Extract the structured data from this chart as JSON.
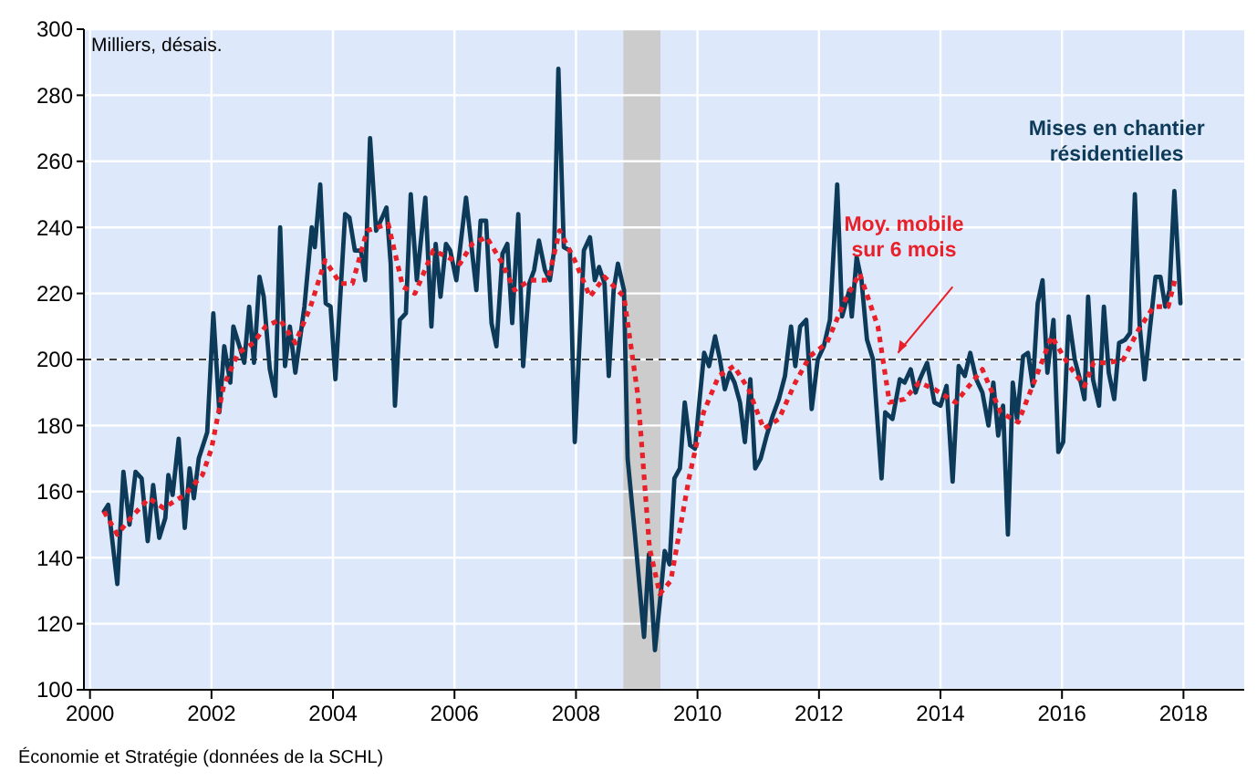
{
  "chart_data": {
    "type": "line",
    "ylabel": "Milliers, désais.",
    "xlim": [
      1999.9,
      2019
    ],
    "xticks": [
      2000,
      2002,
      2004,
      2006,
      2008,
      2010,
      2012,
      2014,
      2016,
      2018
    ],
    "ylim": [
      100,
      300
    ],
    "yticks": [
      100,
      120,
      140,
      160,
      180,
      200,
      220,
      240,
      260,
      280,
      300
    ],
    "grid": true,
    "annotations": [
      "Économie et Stratégie (données de la SCHL)"
    ],
    "ref_lines": [
      {
        "axis": "y",
        "value": 200,
        "color": "#000000",
        "line_style": "dashed"
      }
    ],
    "bands": [
      {
        "axis": "x",
        "from": 2008.78,
        "to": 2009.39,
        "color": "#cccccc"
      }
    ],
    "series": [
      {
        "name": "Mises en chantier résidentielles",
        "color": "#0d3a58",
        "line_style": "solid",
        "x": [
          2000.23,
          2000.3,
          2000.45,
          2000.55,
          2000.65,
          2000.75,
          2000.85,
          2000.95,
          2001.04,
          2001.14,
          2001.24,
          2001.29,
          2001.36,
          2001.46,
          2001.56,
          2001.64,
          2001.71,
          2001.79,
          2001.93,
          2002.03,
          2002.13,
          2002.21,
          2002.31,
          2002.36,
          2002.46,
          2002.54,
          2002.62,
          2002.7,
          2002.79,
          2002.86,
          2002.96,
          2003.05,
          2003.13,
          2003.21,
          2003.29,
          2003.38,
          2003.53,
          2003.65,
          2003.7,
          2003.79,
          2003.88,
          2003.96,
          2004.04,
          2004.2,
          2004.27,
          2004.36,
          2004.46,
          2004.53,
          2004.61,
          2004.71,
          2004.81,
          2004.88,
          2004.95,
          2005.02,
          2005.1,
          2005.2,
          2005.28,
          2005.38,
          2005.52,
          2005.62,
          2005.69,
          2005.77,
          2005.86,
          2005.93,
          2006.03,
          2006.19,
          2006.36,
          2006.43,
          2006.52,
          2006.61,
          2006.69,
          2006.79,
          2006.87,
          2006.95,
          2007.05,
          2007.13,
          2007.23,
          2007.31,
          2007.39,
          2007.49,
          2007.57,
          2007.64,
          2007.71,
          2007.8,
          2007.9,
          2007.98,
          2008.13,
          2008.23,
          2008.31,
          2008.38,
          2008.47,
          2008.54,
          2008.62,
          2008.69,
          2008.79,
          2008.85,
          2008.97,
          2009.12,
          2009.2,
          2009.3,
          2009.4,
          2009.46,
          2009.54,
          2009.62,
          2009.71,
          2009.79,
          2009.88,
          2009.96,
          2010.03,
          2010.11,
          2010.19,
          2010.29,
          2010.37,
          2010.45,
          2010.53,
          2010.61,
          2010.7,
          2010.78,
          2010.87,
          2010.95,
          2011.04,
          2011.14,
          2011.24,
          2011.34,
          2011.44,
          2011.54,
          2011.61,
          2011.69,
          2011.79,
          2011.88,
          2011.98,
          2012.08,
          2012.18,
          2012.3,
          2012.38,
          2012.5,
          2012.54,
          2012.62,
          2012.7,
          2012.79,
          2012.89,
          2013.03,
          2013.09,
          2013.21,
          2013.33,
          2013.41,
          2013.51,
          2013.59,
          2013.66,
          2013.78,
          2013.9,
          2014,
          2014.1,
          2014.2,
          2014.3,
          2014.4,
          2014.49,
          2014.59,
          2014.69,
          2014.79,
          2014.87,
          2014.95,
          2015.03,
          2015.11,
          2015.19,
          2015.26,
          2015.36,
          2015.44,
          2015.52,
          2015.6,
          2015.68,
          2015.76,
          2015.86,
          2015.94,
          2016.02,
          2016.11,
          2016.21,
          2016.31,
          2016.37,
          2016.43,
          2016.51,
          2016.61,
          2016.69,
          2016.77,
          2016.86,
          2016.94,
          2017.04,
          2017.12,
          2017.2,
          2017.28,
          2017.36,
          2017.44,
          2017.54,
          2017.62,
          2017.7,
          2017.77,
          2017.85,
          2017.95
        ],
        "values": [
          154,
          156,
          132,
          166,
          150,
          166,
          164,
          145,
          162,
          146,
          152,
          165,
          159,
          176,
          149,
          167,
          158,
          170,
          178,
          214,
          184,
          204,
          193,
          210,
          204,
          199,
          216,
          199,
          225,
          219,
          197,
          189,
          240,
          198,
          210,
          196,
          216,
          240,
          234,
          253,
          217,
          216,
          194,
          244,
          243,
          233,
          233,
          224,
          267,
          239,
          243,
          246,
          229,
          186,
          212,
          214,
          250,
          224,
          249,
          210,
          235,
          219,
          235,
          233,
          224,
          249,
          221,
          242,
          242,
          211,
          204,
          232,
          235,
          211,
          244,
          198,
          223,
          227,
          236,
          227,
          224,
          233,
          288,
          234,
          233,
          175,
          233,
          237,
          224,
          228,
          223,
          195,
          221,
          229,
          221,
          170,
          147,
          116,
          141,
          112,
          130,
          142,
          138,
          164,
          167,
          187,
          174,
          173,
          187,
          202,
          198,
          207,
          200,
          191,
          196,
          193,
          187,
          175,
          194,
          167,
          170,
          177,
          183,
          188,
          195,
          210,
          198,
          210,
          212,
          185,
          200,
          204,
          212,
          253,
          213,
          221,
          213,
          231,
          224,
          206,
          200,
          164,
          184,
          182,
          194,
          193,
          197,
          190,
          194,
          199,
          187,
          186,
          192,
          163,
          198,
          195,
          202,
          194,
          190,
          180,
          193,
          177,
          186,
          147,
          193,
          182,
          201,
          202,
          192,
          217,
          224,
          196,
          212,
          172,
          175,
          213,
          200,
          193,
          188,
          219,
          194,
          186,
          216,
          196,
          188,
          205,
          206,
          208,
          250,
          210,
          194,
          208,
          225,
          225,
          216,
          221,
          251,
          217
        ]
      },
      {
        "name": "Moy. mobile sur 6 mois",
        "color": "#e8202a",
        "line_style": "dotted",
        "x": [
          2000.23,
          2000.45,
          2000.67,
          2000.97,
          2001.21,
          2001.56,
          2001.85,
          2002,
          2002.2,
          2002.44,
          2002.69,
          2002.89,
          2003.13,
          2003.38,
          2003.63,
          2003.87,
          2004.12,
          2004.32,
          2004.56,
          2004.91,
          2005.15,
          2005.35,
          2005.65,
          2005.89,
          2006.09,
          2006.29,
          2006.53,
          2006.76,
          2006.99,
          2007.24,
          2007.54,
          2007.73,
          2007.98,
          2008.23,
          2008.47,
          2008.79,
          2009.02,
          2009.21,
          2009.38,
          2009.56,
          2009.86,
          2010.1,
          2010.35,
          2010.6,
          2010.84,
          2011.09,
          2011.34,
          2011.61,
          2011.85,
          2012.13,
          2012.43,
          2012.67,
          2012.97,
          2013.16,
          2013.41,
          2013.65,
          2013.9,
          2014.25,
          2014.69,
          2014.99,
          2015.28,
          2015.58,
          2015.83,
          2016.12,
          2016.37,
          2016.52,
          2016.77,
          2017.01,
          2017.26,
          2017.51,
          2017.75,
          2017.87
        ],
        "values": [
          154,
          147,
          152,
          158,
          155,
          159,
          165,
          173,
          192,
          202,
          205,
          210,
          212,
          205,
          216,
          230,
          223,
          223,
          239,
          241,
          222,
          220,
          233,
          231,
          229,
          235,
          237,
          230,
          221,
          224,
          224,
          239,
          230,
          219,
          225,
          219,
          189,
          143,
          129,
          133,
          164,
          184,
          195,
          198,
          191,
          179,
          182,
          193,
          201,
          205,
          218,
          226,
          210,
          187,
          188,
          193,
          191,
          187,
          197,
          184,
          181,
          195,
          207,
          198,
          192,
          199,
          199,
          200,
          209,
          216,
          216,
          225
        ]
      }
    ]
  }
}
